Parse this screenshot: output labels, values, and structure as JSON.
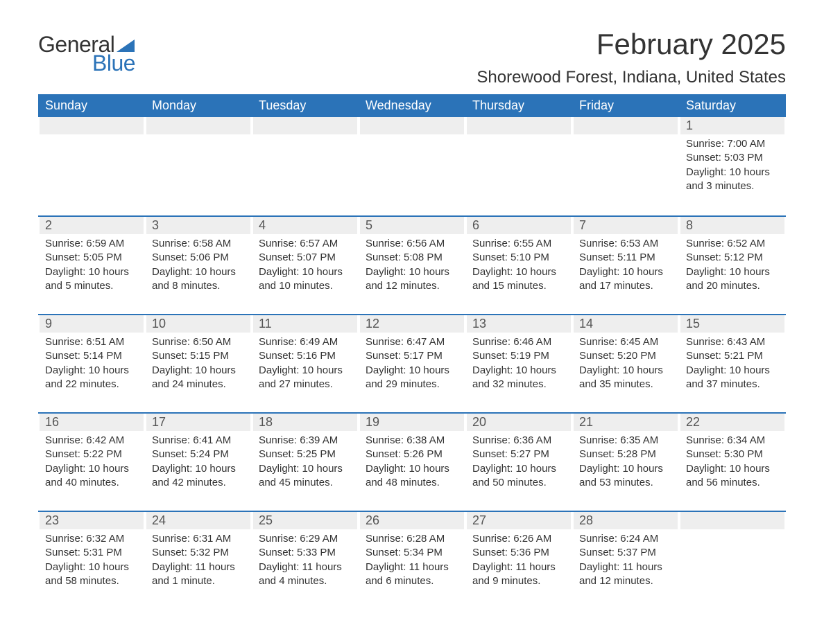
{
  "logo": {
    "text_general": "General",
    "text_blue": "Blue",
    "flag_color": "#2b73b8"
  },
  "title": "February 2025",
  "location": "Shorewood Forest, Indiana, United States",
  "colors": {
    "header_bg": "#2b73b8",
    "header_text": "#ffffff",
    "daynum_bg": "#eeeeee",
    "week_border": "#2b73b8",
    "body_text": "#333333"
  },
  "weekdays": [
    "Sunday",
    "Monday",
    "Tuesday",
    "Wednesday",
    "Thursday",
    "Friday",
    "Saturday"
  ],
  "weeks": [
    [
      {},
      {},
      {},
      {},
      {},
      {},
      {
        "n": "1",
        "sunrise": "Sunrise: 7:00 AM",
        "sunset": "Sunset: 5:03 PM",
        "daylight": "Daylight: 10 hours and 3 minutes."
      }
    ],
    [
      {
        "n": "2",
        "sunrise": "Sunrise: 6:59 AM",
        "sunset": "Sunset: 5:05 PM",
        "daylight": "Daylight: 10 hours and 5 minutes."
      },
      {
        "n": "3",
        "sunrise": "Sunrise: 6:58 AM",
        "sunset": "Sunset: 5:06 PM",
        "daylight": "Daylight: 10 hours and 8 minutes."
      },
      {
        "n": "4",
        "sunrise": "Sunrise: 6:57 AM",
        "sunset": "Sunset: 5:07 PM",
        "daylight": "Daylight: 10 hours and 10 minutes."
      },
      {
        "n": "5",
        "sunrise": "Sunrise: 6:56 AM",
        "sunset": "Sunset: 5:08 PM",
        "daylight": "Daylight: 10 hours and 12 minutes."
      },
      {
        "n": "6",
        "sunrise": "Sunrise: 6:55 AM",
        "sunset": "Sunset: 5:10 PM",
        "daylight": "Daylight: 10 hours and 15 minutes."
      },
      {
        "n": "7",
        "sunrise": "Sunrise: 6:53 AM",
        "sunset": "Sunset: 5:11 PM",
        "daylight": "Daylight: 10 hours and 17 minutes."
      },
      {
        "n": "8",
        "sunrise": "Sunrise: 6:52 AM",
        "sunset": "Sunset: 5:12 PM",
        "daylight": "Daylight: 10 hours and 20 minutes."
      }
    ],
    [
      {
        "n": "9",
        "sunrise": "Sunrise: 6:51 AM",
        "sunset": "Sunset: 5:14 PM",
        "daylight": "Daylight: 10 hours and 22 minutes."
      },
      {
        "n": "10",
        "sunrise": "Sunrise: 6:50 AM",
        "sunset": "Sunset: 5:15 PM",
        "daylight": "Daylight: 10 hours and 24 minutes."
      },
      {
        "n": "11",
        "sunrise": "Sunrise: 6:49 AM",
        "sunset": "Sunset: 5:16 PM",
        "daylight": "Daylight: 10 hours and 27 minutes."
      },
      {
        "n": "12",
        "sunrise": "Sunrise: 6:47 AM",
        "sunset": "Sunset: 5:17 PM",
        "daylight": "Daylight: 10 hours and 29 minutes."
      },
      {
        "n": "13",
        "sunrise": "Sunrise: 6:46 AM",
        "sunset": "Sunset: 5:19 PM",
        "daylight": "Daylight: 10 hours and 32 minutes."
      },
      {
        "n": "14",
        "sunrise": "Sunrise: 6:45 AM",
        "sunset": "Sunset: 5:20 PM",
        "daylight": "Daylight: 10 hours and 35 minutes."
      },
      {
        "n": "15",
        "sunrise": "Sunrise: 6:43 AM",
        "sunset": "Sunset: 5:21 PM",
        "daylight": "Daylight: 10 hours and 37 minutes."
      }
    ],
    [
      {
        "n": "16",
        "sunrise": "Sunrise: 6:42 AM",
        "sunset": "Sunset: 5:22 PM",
        "daylight": "Daylight: 10 hours and 40 minutes."
      },
      {
        "n": "17",
        "sunrise": "Sunrise: 6:41 AM",
        "sunset": "Sunset: 5:24 PM",
        "daylight": "Daylight: 10 hours and 42 minutes."
      },
      {
        "n": "18",
        "sunrise": "Sunrise: 6:39 AM",
        "sunset": "Sunset: 5:25 PM",
        "daylight": "Daylight: 10 hours and 45 minutes."
      },
      {
        "n": "19",
        "sunrise": "Sunrise: 6:38 AM",
        "sunset": "Sunset: 5:26 PM",
        "daylight": "Daylight: 10 hours and 48 minutes."
      },
      {
        "n": "20",
        "sunrise": "Sunrise: 6:36 AM",
        "sunset": "Sunset: 5:27 PM",
        "daylight": "Daylight: 10 hours and 50 minutes."
      },
      {
        "n": "21",
        "sunrise": "Sunrise: 6:35 AM",
        "sunset": "Sunset: 5:28 PM",
        "daylight": "Daylight: 10 hours and 53 minutes."
      },
      {
        "n": "22",
        "sunrise": "Sunrise: 6:34 AM",
        "sunset": "Sunset: 5:30 PM",
        "daylight": "Daylight: 10 hours and 56 minutes."
      }
    ],
    [
      {
        "n": "23",
        "sunrise": "Sunrise: 6:32 AM",
        "sunset": "Sunset: 5:31 PM",
        "daylight": "Daylight: 10 hours and 58 minutes."
      },
      {
        "n": "24",
        "sunrise": "Sunrise: 6:31 AM",
        "sunset": "Sunset: 5:32 PM",
        "daylight": "Daylight: 11 hours and 1 minute."
      },
      {
        "n": "25",
        "sunrise": "Sunrise: 6:29 AM",
        "sunset": "Sunset: 5:33 PM",
        "daylight": "Daylight: 11 hours and 4 minutes."
      },
      {
        "n": "26",
        "sunrise": "Sunrise: 6:28 AM",
        "sunset": "Sunset: 5:34 PM",
        "daylight": "Daylight: 11 hours and 6 minutes."
      },
      {
        "n": "27",
        "sunrise": "Sunrise: 6:26 AM",
        "sunset": "Sunset: 5:36 PM",
        "daylight": "Daylight: 11 hours and 9 minutes."
      },
      {
        "n": "28",
        "sunrise": "Sunrise: 6:24 AM",
        "sunset": "Sunset: 5:37 PM",
        "daylight": "Daylight: 11 hours and 12 minutes."
      },
      {}
    ]
  ]
}
